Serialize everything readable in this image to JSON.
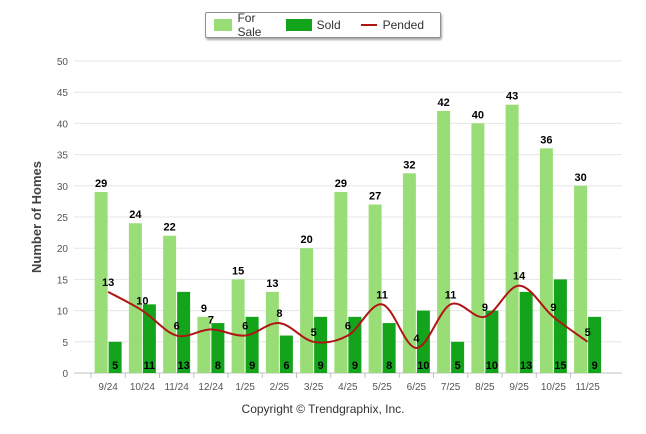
{
  "chart_data": {
    "type": "bar",
    "categories": [
      "9/24",
      "10/24",
      "11/24",
      "12/24",
      "1/25",
      "2/25",
      "3/25",
      "4/25",
      "5/25",
      "6/25",
      "7/25",
      "8/25",
      "9/25",
      "10/25",
      "11/25"
    ],
    "series": [
      {
        "name": "For Sale",
        "type": "bar",
        "color": "#99dd77",
        "values": [
          29,
          24,
          22,
          9,
          15,
          13,
          20,
          29,
          27,
          32,
          42,
          40,
          43,
          36,
          30
        ]
      },
      {
        "name": "Sold",
        "type": "bar",
        "color": "#14a41c",
        "values": [
          5,
          11,
          13,
          8,
          9,
          6,
          9,
          9,
          8,
          10,
          5,
          10,
          13,
          15,
          9
        ]
      },
      {
        "name": "Pended",
        "type": "line",
        "color": "#b01515",
        "values": [
          13,
          10,
          6,
          7,
          6,
          8,
          5,
          6,
          11,
          4,
          11,
          9,
          14,
          9,
          5
        ]
      }
    ],
    "ylabel": "Number of Homes",
    "xlabel": "",
    "ylim": [
      0,
      50
    ],
    "yticks": [
      0,
      5,
      10,
      15,
      20,
      25,
      30,
      35,
      40,
      45,
      50
    ],
    "legend_position": "top-center"
  },
  "legend": {
    "for_sale": "For Sale",
    "sold": "Sold",
    "pended": "Pended"
  },
  "footer": {
    "copyright": "Copyright © Trendgraphix, Inc."
  }
}
